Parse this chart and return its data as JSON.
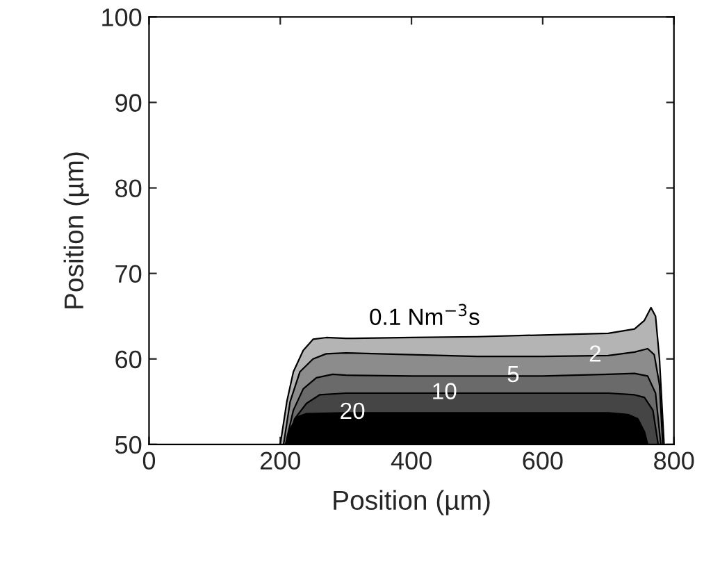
{
  "chart_data": {
    "type": "area",
    "xlabel": "Position (µm)",
    "ylabel": "Position (µm)",
    "xlim": [
      0,
      800
    ],
    "xticks": [
      0,
      200,
      400,
      600,
      800
    ],
    "ylim": [
      50,
      100
    ],
    "yticks": [
      50,
      60,
      70,
      80,
      90,
      100
    ],
    "grid": false,
    "series": [
      {
        "color": "#b4b4b4",
        "x": [
          200,
          210,
          220,
          235,
          250,
          270,
          300,
          400,
          500,
          600,
          700,
          740,
          755,
          765,
          772,
          778,
          785
        ],
        "values": [
          50,
          55,
          58.5,
          61,
          62.3,
          62.5,
          62.4,
          62.5,
          62.6,
          62.8,
          63,
          63.5,
          64.5,
          66,
          65,
          60,
          50
        ]
      },
      {
        "color": "#8c8c8c",
        "x": [
          205,
          215,
          230,
          250,
          270,
          300,
          400,
          500,
          600,
          700,
          740,
          760,
          770,
          778,
          783
        ],
        "values": [
          50,
          55,
          58.5,
          60,
          60.6,
          60.7,
          60.5,
          60.3,
          60.3,
          60.4,
          60.8,
          61.2,
          60.5,
          57,
          50
        ]
      },
      {
        "color": "#6a6a6a",
        "x": [
          208,
          220,
          235,
          255,
          280,
          300,
          400,
          500,
          600,
          700,
          740,
          760,
          772,
          780
        ],
        "values": [
          50,
          54,
          56.5,
          57.8,
          58.2,
          58.1,
          58,
          58,
          58,
          58.2,
          58.3,
          58,
          56,
          50
        ]
      },
      {
        "color": "#454545",
        "x": [
          210,
          222,
          240,
          260,
          300,
          400,
          500,
          600,
          700,
          740,
          755,
          768,
          776
        ],
        "values": [
          50,
          53,
          54.8,
          55.8,
          56,
          56,
          56,
          56,
          56,
          55.8,
          55.5,
          54,
          50
        ]
      },
      {
        "color": "#000000",
        "x": [
          210,
          215,
          225,
          240,
          300,
          400,
          500,
          600,
          700,
          730,
          745,
          755,
          760
        ],
        "values": [
          50,
          51.8,
          53.2,
          53.6,
          53.7,
          53.7,
          53.7,
          53.7,
          53.7,
          53.5,
          53,
          51.5,
          50
        ]
      }
    ],
    "annotations": [
      {
        "text": "0.1 Nm$^{−3}$s",
        "x": 420,
        "y": 62.5
      },
      {
        "text": "2",
        "x": 680,
        "y": 60.4
      },
      {
        "text": "5",
        "x": 555,
        "y": 58
      },
      {
        "text": "10",
        "x": 450,
        "y": 56
      },
      {
        "text": "20",
        "x": 310,
        "y": 53.7
      }
    ]
  }
}
